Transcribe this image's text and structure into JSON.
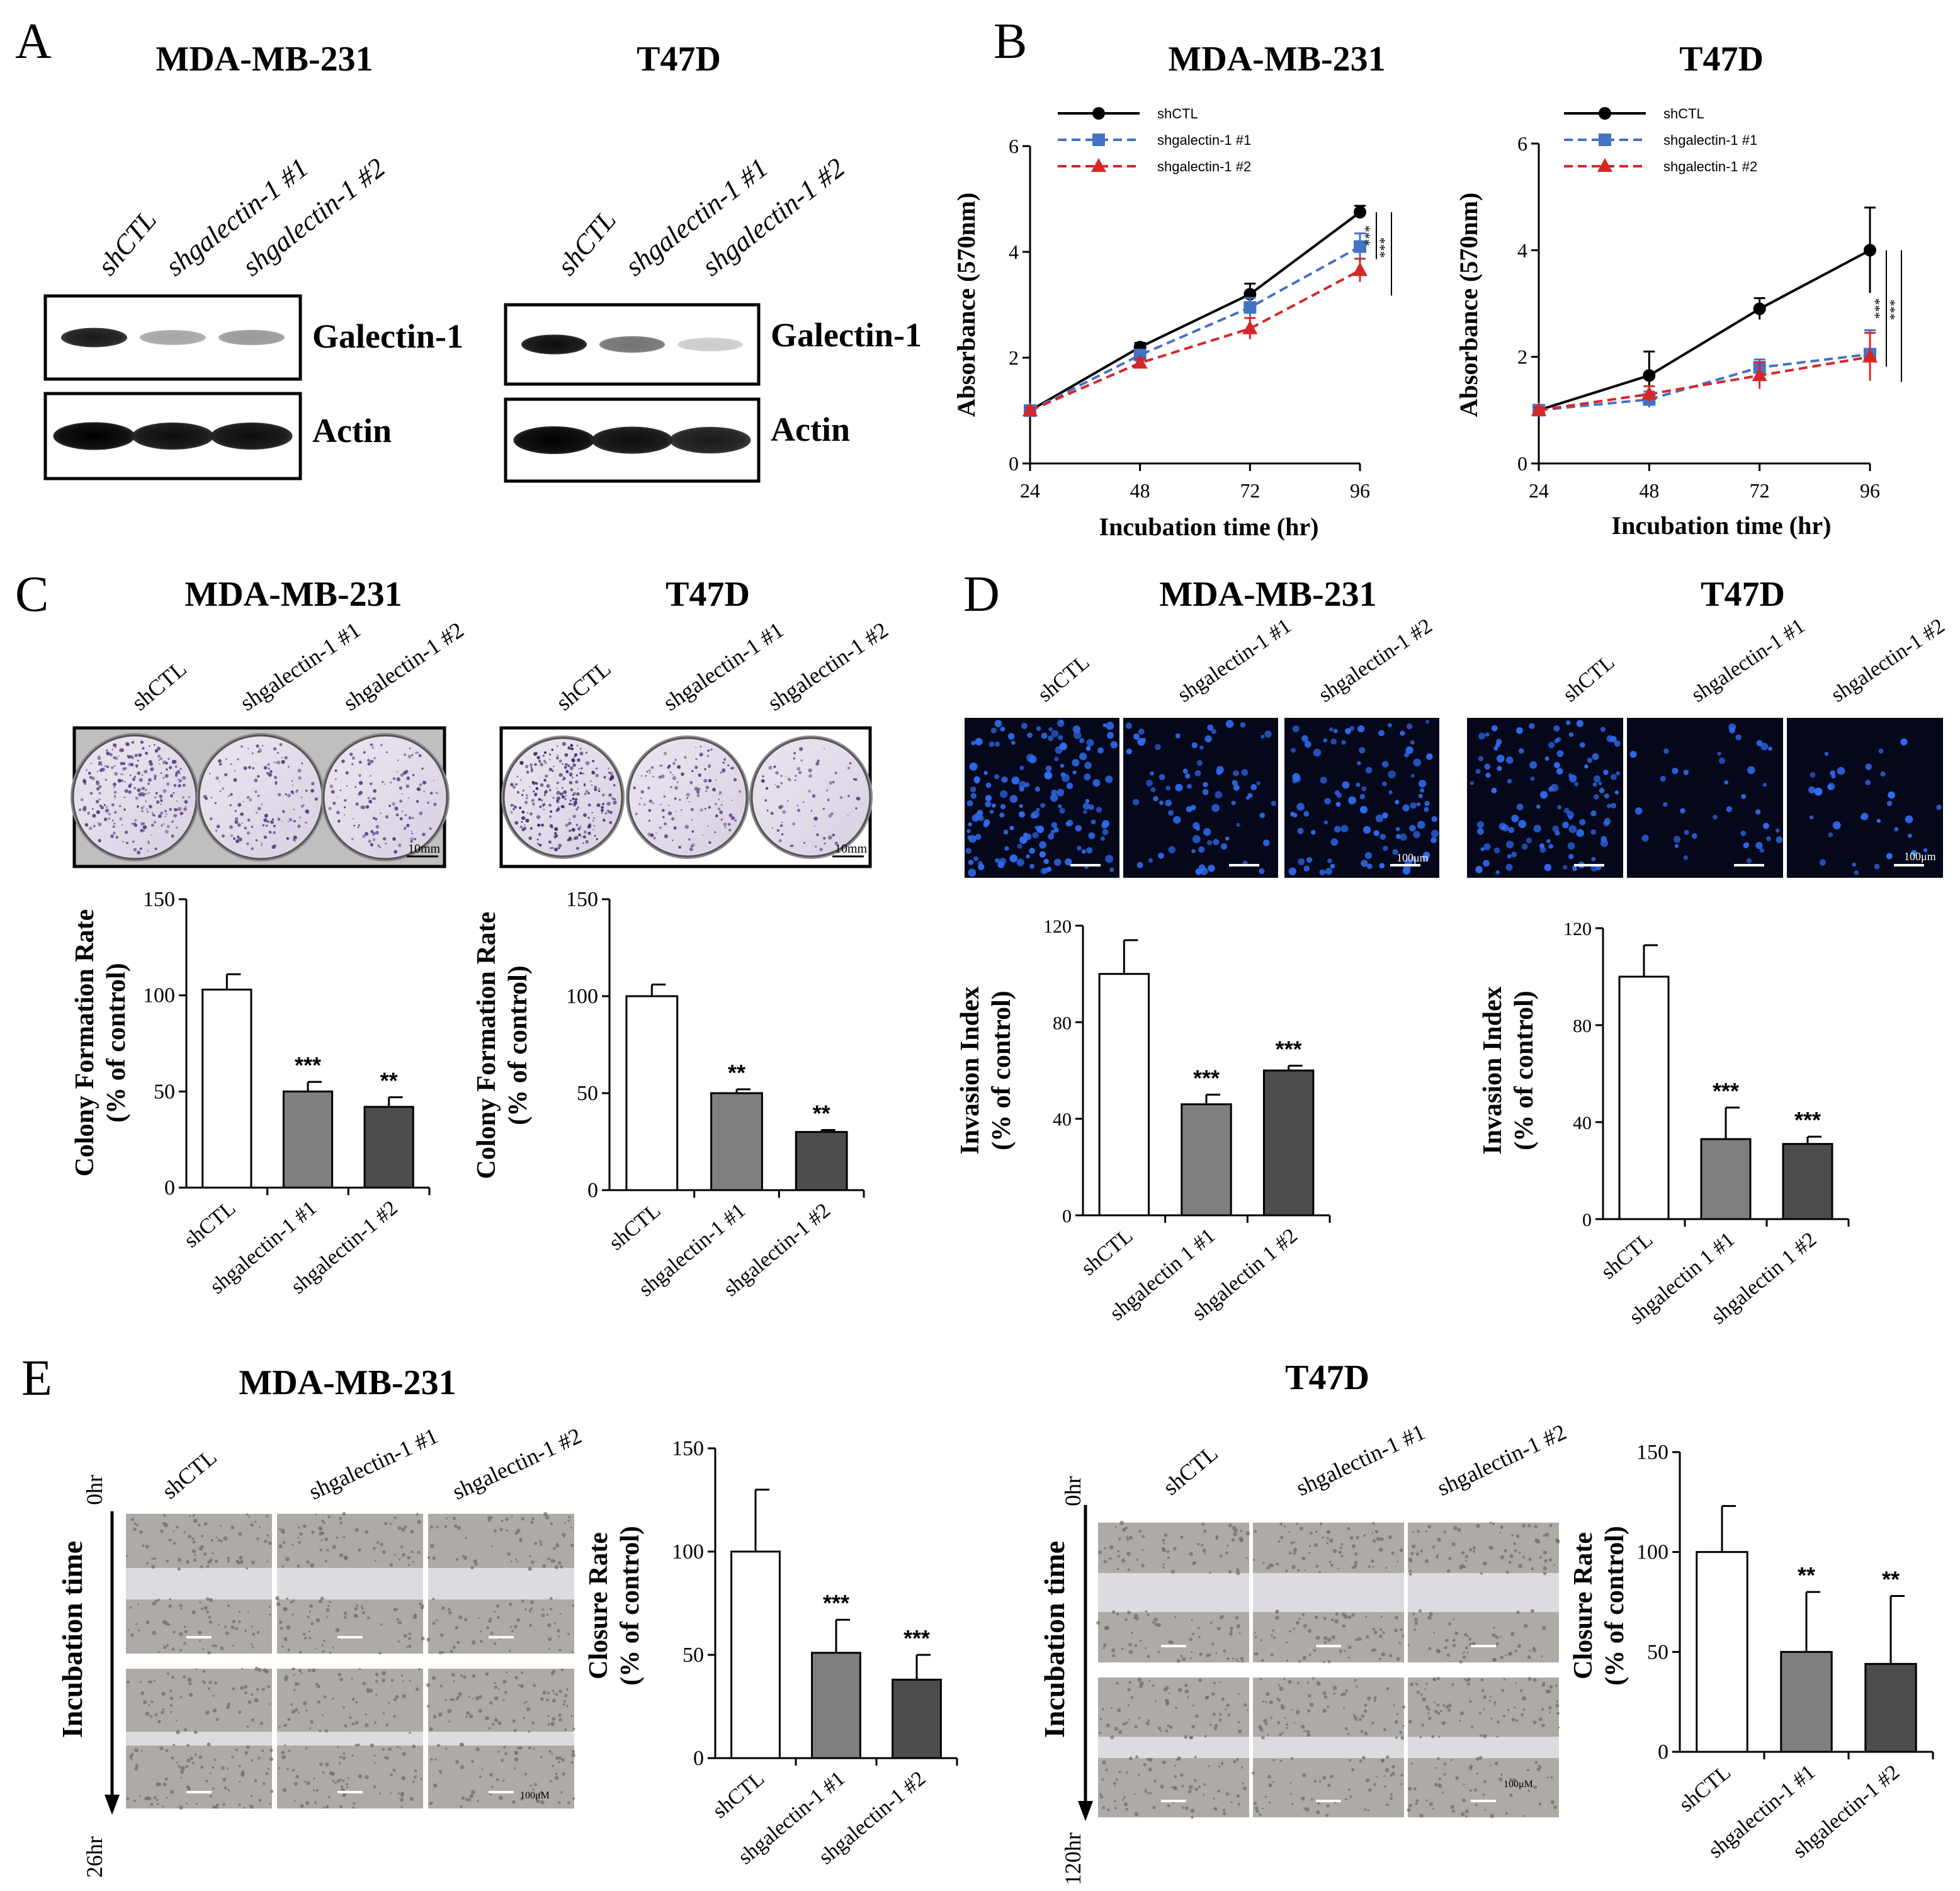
{
  "figure": {
    "panel_letters": {
      "a": "A",
      "b": "B",
      "c": "C",
      "d": "D",
      "e": "E"
    }
  },
  "panel_a": {
    "blots": [
      {
        "cell_line": "MDA-MB-231",
        "lanes": [
          "shCTL",
          "shgalectin-1 #1",
          "shgalectin-1 #2"
        ],
        "rows": [
          {
            "label": "Galectin-1",
            "intensity": [
              0.9,
              0.35,
              0.4
            ]
          },
          {
            "label": "Actin",
            "intensity": [
              1.0,
              0.95,
              0.95
            ]
          }
        ]
      },
      {
        "cell_line": "T47D",
        "lanes": [
          "shCTL",
          "shgalectin-1 #1",
          "shgalectin-1 #2"
        ],
        "rows": [
          {
            "label": "Galectin-1",
            "intensity": [
              0.95,
              0.55,
              0.2
            ]
          },
          {
            "label": "Actin",
            "intensity": [
              1.0,
              0.95,
              0.9
            ]
          }
        ]
      }
    ]
  },
  "panel_c": {
    "images": [
      {
        "cell_line": "MDA-MB-231",
        "lanes": [
          "shCTL",
          "shgalectin-1 #1",
          "shgalectin-1 #2"
        ],
        "scale_label": "10mm",
        "density": [
          1.0,
          0.55,
          0.5
        ]
      },
      {
        "cell_line": "T47D",
        "lanes": [
          "shCTL",
          "shgalectin-1 #1",
          "shgalectin-1 #2"
        ],
        "scale_label": "10mm",
        "density": [
          1.0,
          0.5,
          0.3
        ]
      }
    ]
  },
  "panel_d": {
    "images": [
      {
        "cell_line": "MDA-MB-231",
        "lanes": [
          "shCTL",
          "shgalectin-1 #1",
          "shgalectin-1 #2"
        ],
        "scale_label": "100μm",
        "density": [
          1.0,
          0.5,
          0.65
        ]
      },
      {
        "cell_line": "T47D",
        "lanes": [
          "shCTL",
          "shgalectin-1 #1",
          "shgalectin-1 #2"
        ],
        "scale_label": "100μm",
        "density": [
          1.0,
          0.35,
          0.3
        ]
      }
    ]
  },
  "panel_e": {
    "images": [
      {
        "cell_line": "MDA-MB-231",
        "lanes": [
          "shCTL",
          "shgalectin-1 #1",
          "shgalectin-1 #2"
        ],
        "axis_label": "Incubation time",
        "time_start": "0hr",
        "time_end": "26hr",
        "scale_label": "100μM"
      },
      {
        "cell_line": "T47D",
        "lanes": [
          "shCTL",
          "shgalectin-1 #1",
          "shgalectin-1 #2"
        ],
        "axis_label": "Incubation time",
        "time_start": "0hr",
        "time_end": "120hr",
        "scale_label": "100μM"
      }
    ]
  },
  "chart_data": [
    {
      "id": "b-mda",
      "panel": "B",
      "type": "line",
      "title": "MDA-MB-231",
      "xlabel": "Incubation time (hr)",
      "ylabel": "Absorbance (570nm)",
      "x": [
        24,
        48,
        72,
        96
      ],
      "xticks": [
        24,
        48,
        72,
        96
      ],
      "ylim": [
        0,
        6
      ],
      "yticks": [
        0,
        2,
        4,
        6
      ],
      "series": [
        {
          "name": "shCTL",
          "color": "#000000",
          "dash": "solid",
          "marker": "circle",
          "values": [
            1.0,
            2.2,
            3.2,
            4.75
          ],
          "errors": [
            0.05,
            0.08,
            0.2,
            0.12
          ]
        },
        {
          "name": "shgalectin-1  #1",
          "color": "#4472c4",
          "dash": "dashed",
          "marker": "square",
          "values": [
            1.0,
            2.05,
            2.95,
            4.1
          ],
          "errors": [
            0.05,
            0.08,
            0.18,
            0.25
          ]
        },
        {
          "name": "shgalectin-1  #2",
          "color": "#d62728",
          "dash": "dashed",
          "marker": "triangle",
          "values": [
            1.0,
            1.9,
            2.55,
            3.65
          ],
          "errors": [
            0.05,
            0.08,
            0.2,
            0.22
          ]
        }
      ],
      "significance": [
        "***",
        "***"
      ]
    },
    {
      "id": "b-t47d",
      "panel": "B",
      "type": "line",
      "title": "T47D",
      "xlabel": "Incubation time (hr)",
      "ylabel": "Absorbance (570nm)",
      "x": [
        24,
        48,
        72,
        96
      ],
      "xticks": [
        24,
        48,
        72,
        96
      ],
      "ylim": [
        0,
        6
      ],
      "yticks": [
        0,
        2,
        4,
        6
      ],
      "series": [
        {
          "name": "shCTL",
          "color": "#000000",
          "dash": "solid",
          "marker": "circle",
          "values": [
            1.0,
            1.65,
            2.9,
            4.0
          ],
          "errors": [
            0.05,
            0.45,
            0.2,
            0.8
          ]
        },
        {
          "name": "shgalectin-1  #1",
          "color": "#4472c4",
          "dash": "dashed",
          "marker": "square",
          "values": [
            1.0,
            1.2,
            1.8,
            2.05
          ],
          "errors": [
            0.05,
            0.15,
            0.15,
            0.45
          ]
        },
        {
          "name": "shgalectin-1  #2",
          "color": "#d62728",
          "dash": "dashed",
          "marker": "triangle",
          "values": [
            1.0,
            1.3,
            1.65,
            2.0
          ],
          "errors": [
            0.05,
            0.15,
            0.25,
            0.45
          ]
        }
      ],
      "significance": [
        "***",
        "***"
      ]
    },
    {
      "id": "c-mda",
      "panel": "C",
      "type": "bar",
      "title": "MDA-MB-231",
      "ylabel": [
        "Colony Formation Rate",
        "(% of control)"
      ],
      "categories": [
        "shCTL",
        "shgalectin-1 #1",
        "shgalectin-1 #2"
      ],
      "values": [
        103,
        50,
        42
      ],
      "errors": [
        8,
        5,
        5
      ],
      "annotations": [
        "",
        "***",
        "**"
      ],
      "colors": [
        "#ffffff",
        "#7f7f7f",
        "#4d4d4d"
      ],
      "ylim": [
        0,
        150
      ],
      "yticks": [
        0,
        50,
        100,
        150
      ]
    },
    {
      "id": "c-t47d",
      "panel": "C",
      "type": "bar",
      "title": "T47D",
      "ylabel": [
        "Colony Formation Rate",
        "(% of control)"
      ],
      "categories": [
        "shCTL",
        "shgalectin-1 #1",
        "shgalectin-1 #2"
      ],
      "values": [
        100,
        50,
        30
      ],
      "errors": [
        6,
        2,
        1
      ],
      "annotations": [
        "",
        "**",
        "**"
      ],
      "colors": [
        "#ffffff",
        "#7f7f7f",
        "#4d4d4d"
      ],
      "ylim": [
        0,
        150
      ],
      "yticks": [
        0,
        50,
        100,
        150
      ]
    },
    {
      "id": "d-mda",
      "panel": "D",
      "type": "bar",
      "title": "MDA-MB-231",
      "ylabel": [
        "Invasion Index",
        "(% of control)"
      ],
      "categories": [
        "shCTL",
        "shgalectin 1 #1",
        "shgalectin 1 #2"
      ],
      "values": [
        100,
        46,
        60
      ],
      "errors": [
        14,
        4,
        2
      ],
      "annotations": [
        "",
        "***",
        "***"
      ],
      "colors": [
        "#ffffff",
        "#7f7f7f",
        "#4d4d4d"
      ],
      "ylim": [
        0,
        120
      ],
      "yticks": [
        0,
        40,
        80,
        120
      ]
    },
    {
      "id": "d-t47d",
      "panel": "D",
      "type": "bar",
      "title": "T47D",
      "ylabel": [
        "Invasion Index",
        "(% of control)"
      ],
      "categories": [
        "shCTL",
        "shgalectin 1 #1",
        "shgalectin 1 #2"
      ],
      "values": [
        100,
        33,
        31
      ],
      "errors": [
        13,
        13,
        3
      ],
      "annotations": [
        "",
        "***",
        "***"
      ],
      "colors": [
        "#ffffff",
        "#7f7f7f",
        "#4d4d4d"
      ],
      "ylim": [
        0,
        120
      ],
      "yticks": [
        0,
        40,
        80,
        120
      ]
    },
    {
      "id": "e-mda",
      "panel": "E",
      "type": "bar",
      "ylabel": [
        "Closure Rate",
        "(% of control)"
      ],
      "categories": [
        "shCTL",
        "shgalectin-1 #1",
        "shgalectin-1 #2"
      ],
      "values": [
        100,
        51,
        38
      ],
      "errors": [
        30,
        16,
        12
      ],
      "annotations": [
        "",
        "***",
        "***"
      ],
      "colors": [
        "#ffffff",
        "#7f7f7f",
        "#4d4d4d"
      ],
      "ylim": [
        0,
        150
      ],
      "yticks": [
        0,
        50,
        100,
        150
      ]
    },
    {
      "id": "e-t47d",
      "panel": "E",
      "type": "bar",
      "ylabel": [
        "Closure Rate",
        "(% of control)"
      ],
      "categories": [
        "shCTL",
        "shgalectin-1 #1",
        "shgalectin-1 #2"
      ],
      "values": [
        100,
        50,
        44
      ],
      "errors": [
        23,
        30,
        34
      ],
      "annotations": [
        "",
        "**",
        "**"
      ],
      "colors": [
        "#ffffff",
        "#7f7f7f",
        "#4d4d4d"
      ],
      "ylim": [
        0,
        150
      ],
      "yticks": [
        0,
        50,
        100,
        150
      ]
    }
  ]
}
